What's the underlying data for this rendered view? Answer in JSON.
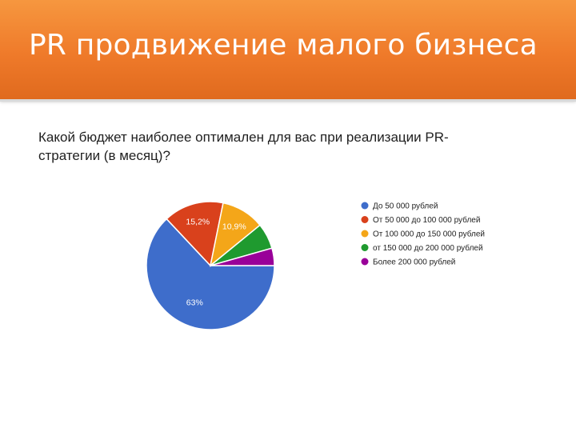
{
  "slide": {
    "title": "PR продвижение малого бизнеса",
    "header_color": "#ef7a2a"
  },
  "chart_data": {
    "type": "pie",
    "title": "Какой бюджет наиболее оптимален для вас при реализации PR-стратегии (в месяц)?",
    "title_lines": [
      "Какой бюджет наиболее оптимален для вас при реализации PR-",
      "стратегии (в месяц)?"
    ],
    "slices": [
      {
        "label": "До 50 000 рублей",
        "value": 63,
        "value_label": "63%",
        "color": "#3e6dcb"
      },
      {
        "label": "От 50 000 до 100 000 рублей",
        "value": 15.2,
        "value_label": "15,2%",
        "color": "#d9411c"
      },
      {
        "label": "От 100 000 до 150 000 рублей",
        "value": 10.9,
        "value_label": "10,9%",
        "color": "#f4a619"
      },
      {
        "label": "от 150 000 до 200 000 рублей",
        "value": 6.5,
        "value_label": "",
        "color": "#1f9a2f"
      },
      {
        "label": "Более 200 000 рублей",
        "value": 4.4,
        "value_label": "",
        "color": "#990099"
      }
    ],
    "legend_position": "right"
  }
}
